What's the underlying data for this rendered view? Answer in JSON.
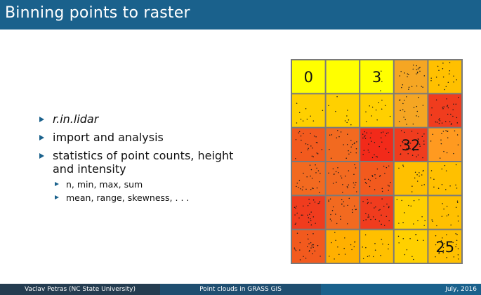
{
  "slide": {
    "title": "Binning points to raster"
  },
  "bullets": [
    {
      "text": "r.in.lidar",
      "italic": true
    },
    {
      "text": "import and analysis"
    },
    {
      "text": "statistics of point counts, height and intensity",
      "sub": [
        "n, min, max, sum",
        "mean, range, skewness, . . ."
      ]
    }
  ],
  "raster": {
    "rows": 6,
    "cols": 5,
    "colors": [
      [
        "#ffff00",
        "#ffff00",
        "#ffff00",
        "#f5a623",
        "#ffc000"
      ],
      [
        "#ffd000",
        "#ffd000",
        "#ffd000",
        "#f5a623",
        "#f03c1e"
      ],
      [
        "#f25a1e",
        "#f26a20",
        "#f22a1a",
        "#f03c1e",
        "#ff9a20"
      ],
      [
        "#f26a20",
        "#f26a20",
        "#f25a1e",
        "#ffc000",
        "#ffc000"
      ],
      [
        "#f03c1e",
        "#f26a20",
        "#f03c1e",
        "#ffd000",
        "#ffc000"
      ],
      [
        "#f25a1e",
        "#ffb000",
        "#ffc000",
        "#ffd000",
        "#ffc000"
      ]
    ],
    "dot_counts": [
      [
        0,
        0,
        3,
        26,
        18
      ],
      [
        10,
        9,
        12,
        20,
        30
      ],
      [
        24,
        23,
        30,
        32,
        17
      ],
      [
        25,
        26,
        24,
        16,
        14
      ],
      [
        29,
        25,
        29,
        14,
        15
      ],
      [
        26,
        15,
        14,
        12,
        25
      ]
    ],
    "labels": [
      {
        "row": 0,
        "col": 0,
        "text": "0"
      },
      {
        "row": 0,
        "col": 2,
        "text": "3"
      },
      {
        "row": 2,
        "col": 3,
        "text": "32"
      },
      {
        "row": 5,
        "col": 4,
        "text": "25"
      }
    ]
  },
  "footer": {
    "author": "Vaclav Petras (NC State University)",
    "talk": "Point clouds in GRASS GIS",
    "date": "July, 2016"
  }
}
